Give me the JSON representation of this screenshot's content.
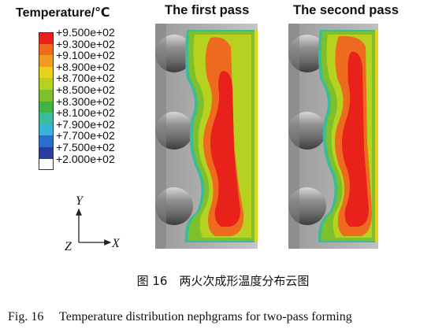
{
  "legend": {
    "title": "Temperature/℃",
    "entries": [
      {
        "label": "+9.500e+02",
        "color": "#e8211b"
      },
      {
        "label": "+9.300e+02",
        "color": "#ee6a1e"
      },
      {
        "label": "+9.100e+02",
        "color": "#f29c1f"
      },
      {
        "label": "+8.900e+02",
        "color": "#e9d21c"
      },
      {
        "label": "+8.700e+02",
        "color": "#b6d11f"
      },
      {
        "label": "+8.500e+02",
        "color": "#7cc12d"
      },
      {
        "label": "+8.300e+02",
        "color": "#3fb34a"
      },
      {
        "label": "+8.100e+02",
        "color": "#3cbb9a"
      },
      {
        "label": "+7.900e+02",
        "color": "#38b5d6"
      },
      {
        "label": "+7.700e+02",
        "color": "#2a6fcf"
      },
      {
        "label": "+7.500e+02",
        "color": "#2a3d9e"
      },
      {
        "label": "+2.000e+02",
        "color": "#ffffff"
      }
    ]
  },
  "axes": {
    "y": "Y",
    "z": "Z",
    "x": "X"
  },
  "panels": [
    {
      "title": "The first pass"
    },
    {
      "title": "The second pass"
    }
  ],
  "caption_cn": "图 16　两火次成形温度分布云图",
  "caption_en": "Fig. 16　 Temperature distribution nephgrams for two-pass forming"
}
